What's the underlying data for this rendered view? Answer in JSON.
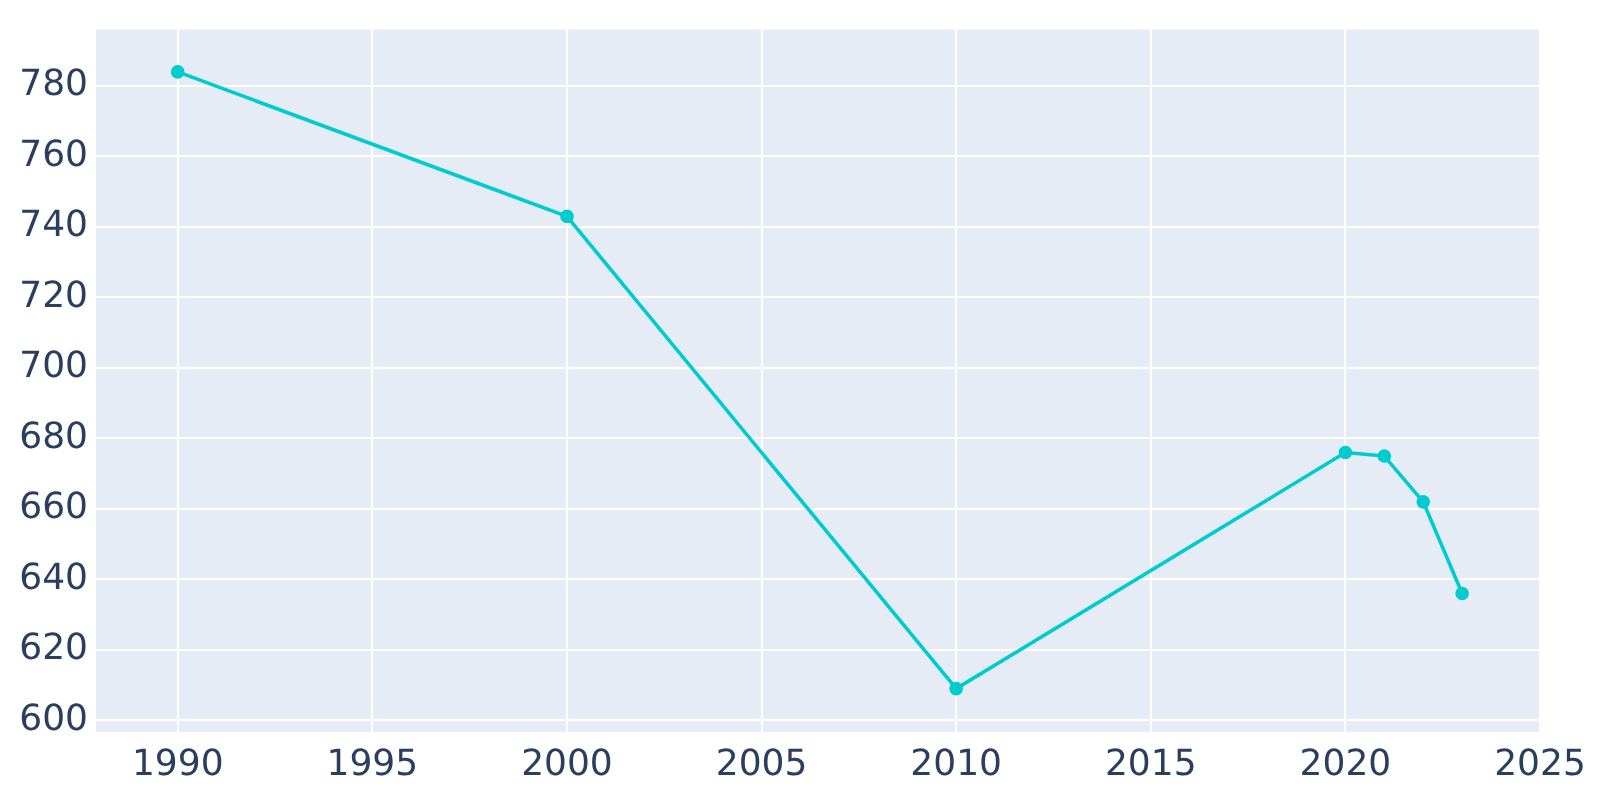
{
  "chart_data": {
    "type": "line",
    "x": [
      1990,
      2000,
      2010,
      2020,
      2021,
      2022,
      2023
    ],
    "series": [
      {
        "color": "#00ccd0",
        "values": [
          784,
          743,
          609,
          676,
          675,
          662,
          636
        ]
      }
    ],
    "xlim": [
      1987.9,
      2025
    ],
    "xticks": [
      1990,
      1995,
      2000,
      2005,
      2010,
      2015,
      2020,
      2025
    ],
    "ylim": [
      596.7,
      796
    ],
    "yticks": [
      600,
      620,
      640,
      660,
      680,
      700,
      720,
      740,
      760,
      780
    ],
    "grid": true,
    "marker": "circle",
    "line_style": "solid",
    "legend": false
  }
}
